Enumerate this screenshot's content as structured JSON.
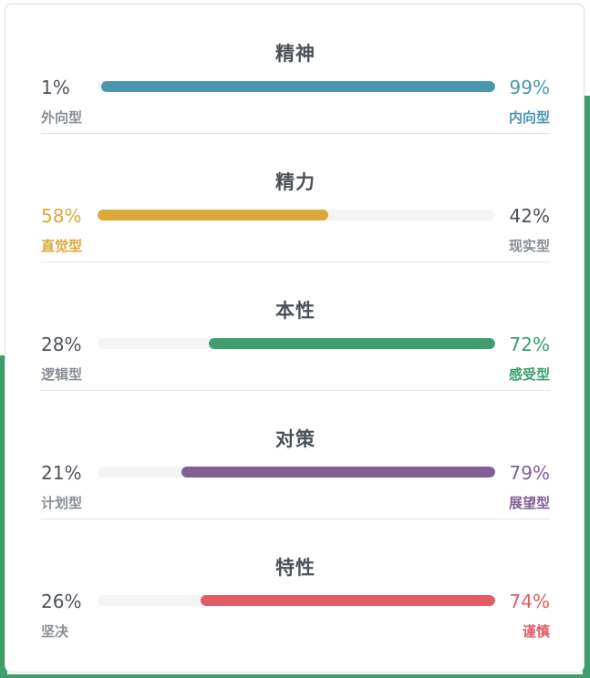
{
  "colors": {
    "blue": "#4a96b0",
    "gold": "#daa93a",
    "green": "#3e9e6c",
    "purple": "#835f95",
    "red": "#e35b63",
    "neutral_text": "#4d5259",
    "muted_text": "#8a8f96"
  },
  "sections": [
    {
      "title": "精神",
      "left_pct": "1%",
      "left_label": "外向型",
      "right_pct": "99%",
      "right_label": "内向型",
      "left_value": 1,
      "right_value": 99,
      "dominant": "right",
      "color": "#4a96b0"
    },
    {
      "title": "精力",
      "left_pct": "58%",
      "left_label": "直觉型",
      "right_pct": "42%",
      "right_label": "现实型",
      "left_value": 58,
      "right_value": 42,
      "dominant": "left",
      "color": "#daa93a"
    },
    {
      "title": "本性",
      "left_pct": "28%",
      "left_label": "逻辑型",
      "right_pct": "72%",
      "right_label": "感受型",
      "left_value": 28,
      "right_value": 72,
      "dominant": "right",
      "color": "#3e9e6c"
    },
    {
      "title": "对策",
      "left_pct": "21%",
      "left_label": "计划型",
      "right_pct": "79%",
      "right_label": "展望型",
      "left_value": 21,
      "right_value": 79,
      "dominant": "right",
      "color": "#835f95"
    },
    {
      "title": "特性",
      "left_pct": "26%",
      "left_label": "坚决",
      "right_pct": "74%",
      "right_label": "谨慎",
      "left_value": 26,
      "right_value": 74,
      "dominant": "right",
      "color": "#e35b63"
    }
  ]
}
